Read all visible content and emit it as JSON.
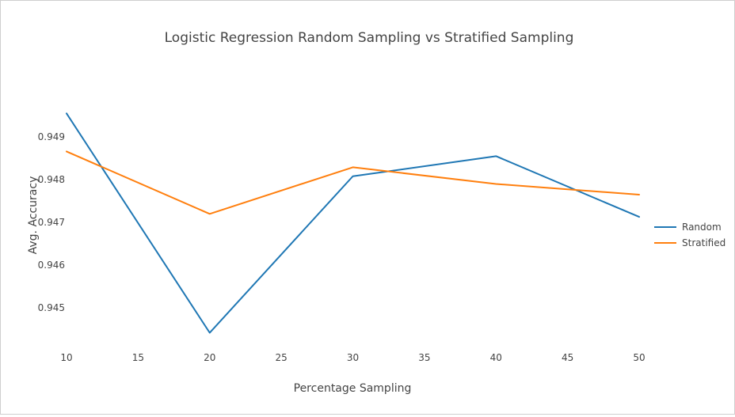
{
  "chart_data": {
    "type": "line",
    "title": "Logistic Regression Random Sampling vs Stratified Sampling",
    "xlabel": "Percentage Sampling",
    "ylabel": "Avg. Accuracy",
    "x": [
      10,
      20,
      30,
      40,
      50
    ],
    "series": [
      {
        "name": "Random",
        "color": "#1f77b4",
        "values": [
          0.94955,
          0.94442,
          0.94808,
          0.94855,
          0.94713
        ]
      },
      {
        "name": "Stratified",
        "color": "#ff7f0e",
        "values": [
          0.94866,
          0.9472,
          0.94829,
          0.9479,
          0.94765
        ]
      }
    ],
    "x_ticks": [
      "10",
      "15",
      "20",
      "25",
      "30",
      "35",
      "40",
      "45",
      "50"
    ],
    "y_ticks": [
      "0.945",
      "0.946",
      "0.947",
      "0.948",
      "0.949"
    ],
    "xlim": [
      10,
      50
    ],
    "ylim": [
      0.9443,
      0.95
    ],
    "grid": false,
    "legend_position": "right"
  }
}
